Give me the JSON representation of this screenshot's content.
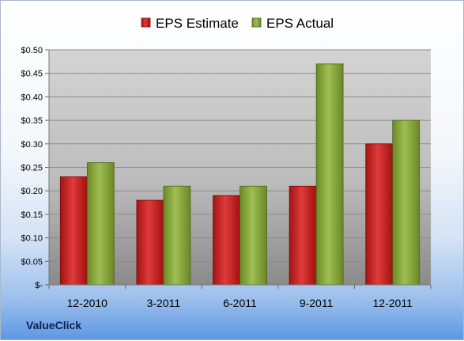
{
  "company": "ValueClick",
  "chart_data": {
    "type": "bar",
    "title": "",
    "xlabel": "",
    "ylabel": "",
    "categories": [
      "12-2010",
      "3-2011",
      "6-2011",
      "9-2011",
      "12-2011"
    ],
    "series": [
      {
        "name": "EPS Estimate",
        "color": "#cc2222",
        "values": [
          0.23,
          0.18,
          0.19,
          0.21,
          0.3
        ]
      },
      {
        "name": "EPS Actual",
        "color": "#88a83c",
        "values": [
          0.26,
          0.21,
          0.21,
          0.47,
          0.35
        ]
      }
    ],
    "ylim": [
      0,
      0.5
    ],
    "y_ticks": [
      0,
      0.05,
      0.1,
      0.15,
      0.2,
      0.25,
      0.3,
      0.35,
      0.4,
      0.45,
      0.5
    ],
    "y_tick_labels": [
      "$-",
      "$0.05",
      "$0.10",
      "$0.15",
      "$0.20",
      "$0.25",
      "$0.30",
      "$0.35",
      "$0.40",
      "$0.45",
      "$0.50"
    ],
    "grid": true,
    "legend_position": "top"
  }
}
